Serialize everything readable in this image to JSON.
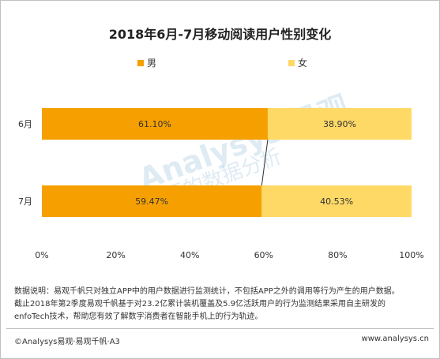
{
  "chart_data": {
    "type": "bar",
    "orientation": "horizontal",
    "stacked": true,
    "title": "2018年6月-7月移动阅读用户性别变化",
    "categories": [
      "6月",
      "7月"
    ],
    "series": [
      {
        "name": "男",
        "values": [
          61.1,
          59.47
        ],
        "labels": [
          "61.10%",
          "59.47%"
        ],
        "color": "#f5a000"
      },
      {
        "name": "女",
        "values": [
          38.9,
          40.53
        ],
        "labels": [
          "38.90%",
          "40.53%"
        ],
        "color": "#ffd966"
      }
    ],
    "x_ticks": [
      "0%",
      "20%",
      "40%",
      "60%",
      "80%",
      "100%"
    ],
    "xlim": [
      0,
      100
    ],
    "legend_position": "top",
    "grid": false,
    "connector_line": true
  },
  "watermark": {
    "text": "Analysys 易观",
    "subtext": "你要的数据分析"
  },
  "note": {
    "line1": "数据说明：易观千帆只对独立APP中的用户数据进行监测统计，不包括APP之外的调用等行为产生的用户数据。",
    "line2": "截止2018年第2季度易观千帆基于对23.2亿累计装机覆盖及5.9亿活跃用户的行为监测结果采用自主研发的",
    "line3": "enfoTech技术，帮助您有效了解数字消费者在智能手机上的行为轨迹。"
  },
  "footer": {
    "left": "©Analysys易观·易观千帆·A3",
    "right": "www.analysys.cn"
  }
}
